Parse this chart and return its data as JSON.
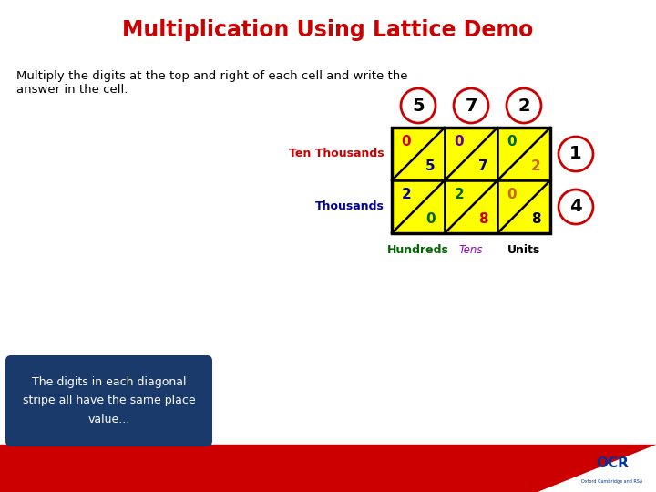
{
  "title": "Multiplication Using Lattice Demo",
  "title_color": "#cc0000",
  "subtitle_line1": "Multiply the digits at the top and right of each cell and write the",
  "subtitle_line2": "answer in the cell.",
  "subtitle_color": "#000000",
  "bg_color": "#ffffff",
  "footer_color": "#cc0000",
  "top_digits": [
    "5",
    "7",
    "2"
  ],
  "right_digits": [
    "1",
    "4"
  ],
  "grid_bg": "#ffff00",
  "grid_line_color": "#000000",
  "cell_upper_left": [
    [
      "0",
      "0",
      "0"
    ],
    [
      "2",
      "2",
      "0"
    ]
  ],
  "cell_lower_right": [
    [
      "5",
      "7",
      "2"
    ],
    [
      "0",
      "8",
      "8"
    ]
  ],
  "cell_upper_left_colors": [
    [
      "#cc0000",
      "#660099",
      "#006600"
    ],
    [
      "#000099",
      "#006600",
      "#cc6600"
    ]
  ],
  "cell_lower_right_colors": [
    [
      "#000099",
      "#000099",
      "#cc6600"
    ],
    [
      "#006600",
      "#cc0000",
      "#000000"
    ]
  ],
  "label_ten_thousands": "Ten Thousands",
  "label_ten_thousands_color": "#cc0000",
  "label_thousands": "Thousands",
  "label_thousands_color": "#000099",
  "label_hundreds": "Hundreds",
  "label_hundreds_color": "#006600",
  "label_tens": "Tens",
  "label_tens_color": "#9900cc",
  "label_units": "Units",
  "label_units_color": "#000000",
  "box_text": "The digits in each diagonal\nstripe all have the same place\nvalue...",
  "box_bg": "#1a3a6b",
  "box_text_color": "#ffffff"
}
